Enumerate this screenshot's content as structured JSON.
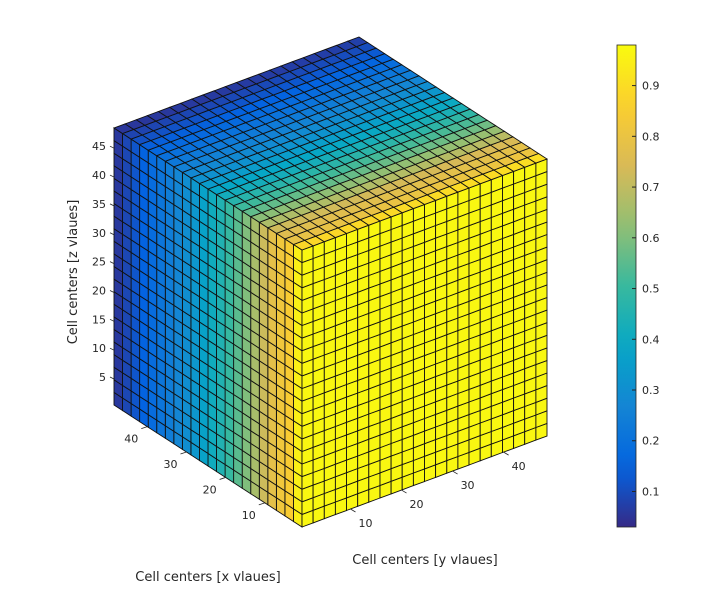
{
  "chart_data": {
    "type": "voxel-3d",
    "title": "",
    "xlabel": "Cell centers [x vlaues]",
    "ylabel": "Cell centers [y vlaues]",
    "zlabel": "Cell centers [z vlaues]",
    "xlim": [
      0.5,
      48.5
    ],
    "ylim": [
      0.5,
      48.5
    ],
    "zlim": [
      0.5,
      48.5
    ],
    "cells_per_axis": 22,
    "x_ticks": [
      "10",
      "20",
      "30",
      "40"
    ],
    "y_ticks": [
      "10",
      "20",
      "30",
      "40"
    ],
    "z_ticks": [
      "5",
      "10",
      "15",
      "20",
      "25",
      "30",
      "35",
      "40",
      "45"
    ],
    "value_by_x_cell": [
      0.95,
      0.85,
      0.82,
      0.78,
      0.72,
      0.66,
      0.6,
      0.55,
      0.5,
      0.45,
      0.41,
      0.37,
      0.33,
      0.3,
      0.27,
      0.24,
      0.21,
      0.18,
      0.15,
      0.12,
      0.09,
      0.06
    ],
    "front_y_face_value": 0.97,
    "colormap": "parula",
    "grid": false,
    "colorbar": {
      "location": "right",
      "clim": [
        0.03,
        0.98
      ],
      "ticks": [
        "0.1",
        "0.2",
        "0.3",
        "0.4",
        "0.5",
        "0.6",
        "0.7",
        "0.8",
        "0.9"
      ]
    }
  }
}
